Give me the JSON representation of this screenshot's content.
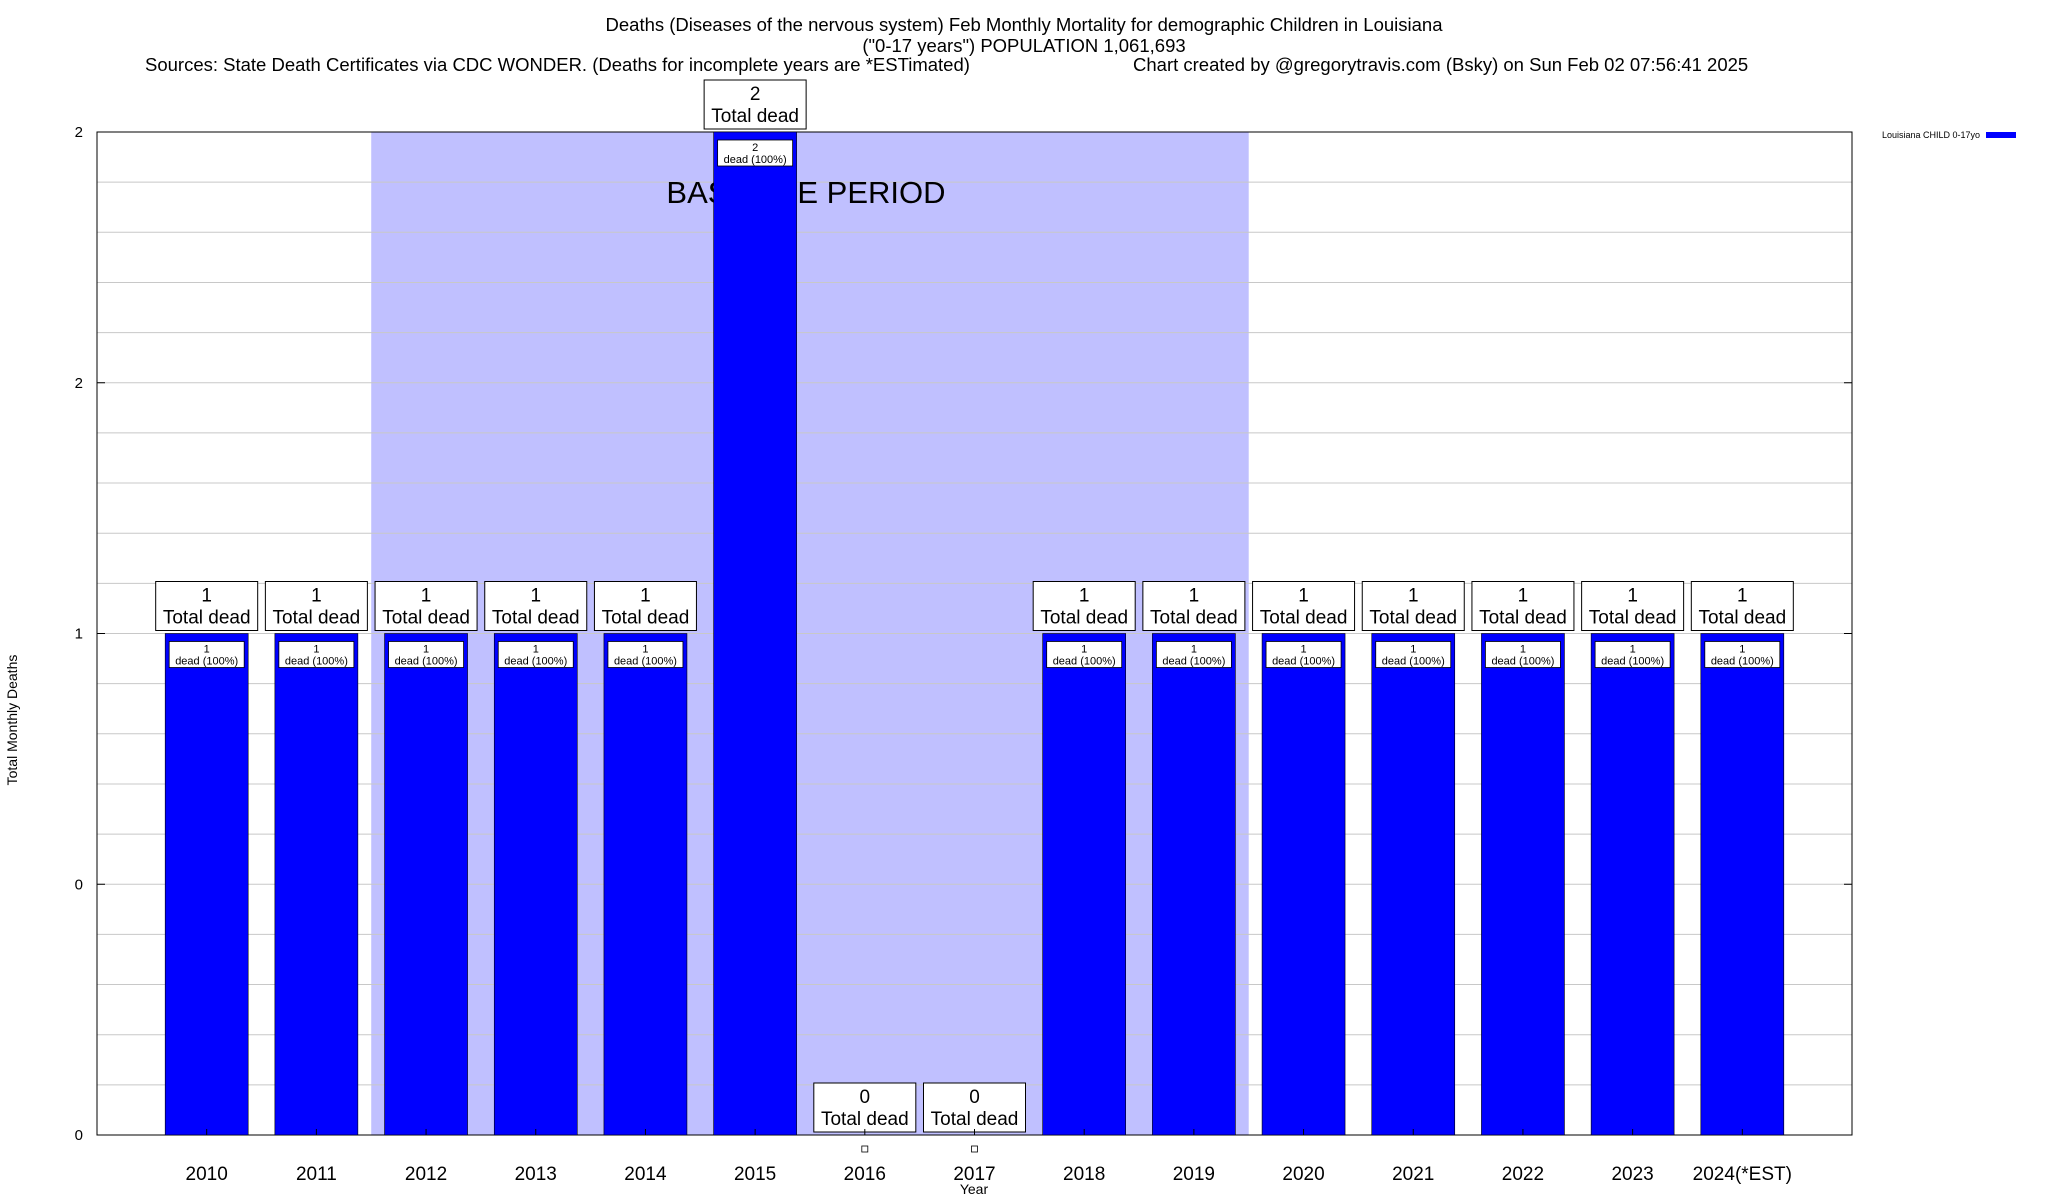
{
  "header": {
    "title_line1": "Deaths (Diseases of the nervous system) Feb Monthly Mortality for demographic Children in Louisiana",
    "title_line2": "(\"0-17 years\") POPULATION 1,061,693",
    "sources": "Sources: State Death Certificates via CDC WONDER. (Deaths for incomplete years are *ESTimated)",
    "credit": "Chart created by @gregorytravis.com (Bsky) on Sun Feb 02 07:56:41 2025"
  },
  "chart_data": {
    "type": "bar",
    "title": "Deaths (Diseases of the nervous system) Feb Monthly Mortality for demographic Children in Louisiana",
    "subtitle": "(\"0-17 years\") POPULATION 1,061,693",
    "xlabel": "Year",
    "ylabel": "Total Monthly Deaths",
    "categories": [
      "2010",
      "2011",
      "2012",
      "2013",
      "2014",
      "2015",
      "2016",
      "2017",
      "2018",
      "2019",
      "2020",
      "2021",
      "2022",
      "2023",
      "2024(*EST)"
    ],
    "series": [
      {
        "name": "Louisiana CHILD 0-17yo",
        "values": [
          1,
          1,
          1,
          1,
          1,
          2,
          0,
          0,
          1,
          1,
          1,
          1,
          1,
          1,
          1
        ]
      }
    ],
    "total_labels": [
      "1\nTotal dead",
      "1\nTotal dead",
      "1\nTotal dead",
      "1\nTotal dead",
      "1\nTotal dead",
      "2\nTotal dead",
      "0\nTotal dead",
      "0\nTotal dead",
      "1\nTotal dead",
      "1\nTotal dead",
      "1\nTotal dead",
      "1\nTotal dead",
      "1\nTotal dead",
      "1\nTotal dead",
      "1\nTotal dead"
    ],
    "inner_labels": [
      "1\ndead (100%)",
      "1\ndead (100%)",
      "1\ndead (100%)",
      "1\ndead (100%)",
      "1\ndead (100%)",
      "2\ndead (100%)",
      "",
      "",
      "1\ndead (100%)",
      "1\ndead (100%)",
      "1\ndead (100%)",
      "1\ndead (100%)",
      "1\ndead (100%)",
      "1\ndead (100%)",
      "1\ndead (100%)"
    ],
    "ytick_labels": [
      "0",
      "0",
      "1",
      "2",
      "2"
    ],
    "ylim": [
      0,
      2
    ],
    "baseline_period": {
      "label": "BASELINE PERIOD",
      "from": "2012",
      "to": "2019"
    },
    "grid": true,
    "legend_position": "top-right",
    "colors": {
      "bar": "#0000ff",
      "baseline_shade": "#c0c0ff",
      "grid": "#c8c8c8"
    }
  }
}
